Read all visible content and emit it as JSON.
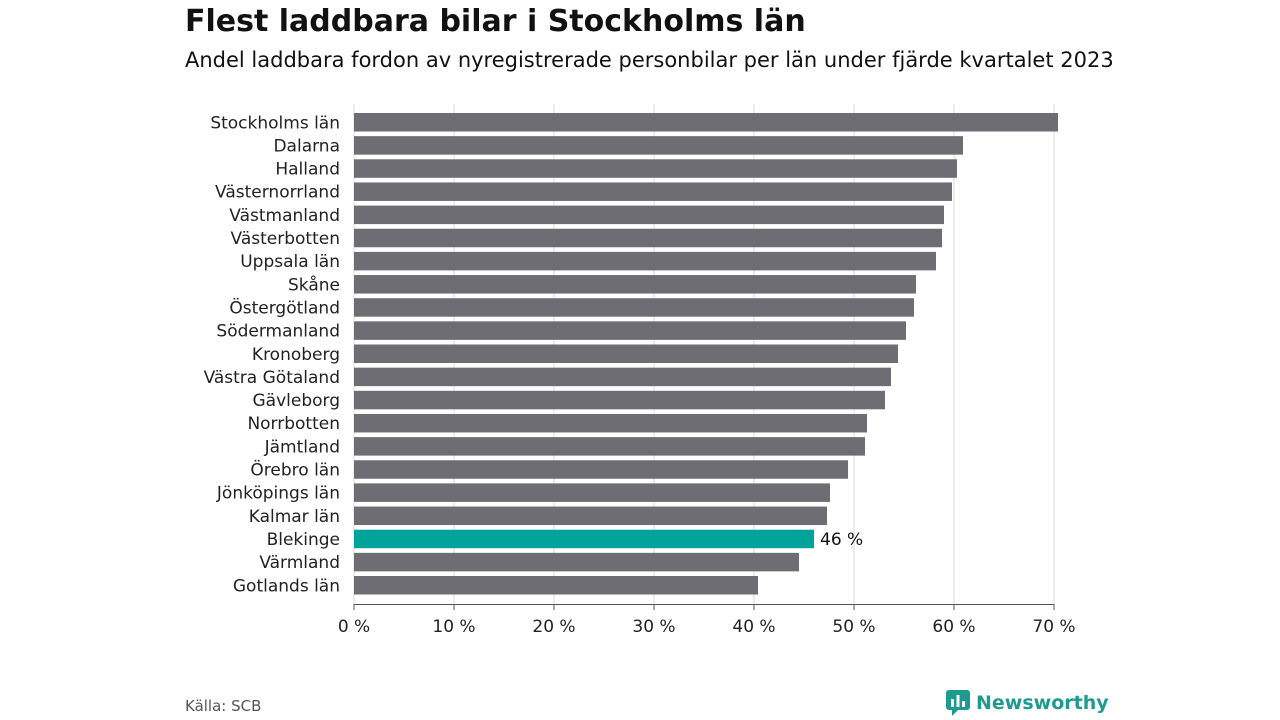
{
  "chart_data": {
    "type": "bar",
    "orientation": "horizontal",
    "title": "Flest laddbara bilar i Stockholms län",
    "subtitle": "Andel laddbara fordon av nyregistrerade personbilar per län under fjärde kvartalet 2023",
    "categories": [
      "Stockholms län",
      "Dalarna",
      "Halland",
      "Västernorrland",
      "Västmanland",
      "Västerbotten",
      "Uppsala län",
      "Skåne",
      "Östergötland",
      "Södermanland",
      "Kronoberg",
      "Västra Götaland",
      "Gävleborg",
      "Norrbotten",
      "Jämtland",
      "Örebro län",
      "Jönköpings län",
      "Kalmar län",
      "Blekinge",
      "Värmland",
      "Gotlands län"
    ],
    "values": [
      70.4,
      60.9,
      60.3,
      59.8,
      59.0,
      58.8,
      58.2,
      56.2,
      56.0,
      55.2,
      54.4,
      53.7,
      53.1,
      51.3,
      51.1,
      49.4,
      47.6,
      47.3,
      46.0,
      44.5,
      40.4
    ],
    "highlight_index": 18,
    "highlight_label": "46 %",
    "xlim": [
      0,
      70
    ],
    "xticks": [
      0,
      10,
      20,
      30,
      40,
      50,
      60,
      70
    ],
    "tick_suffix": " %",
    "grid": true,
    "colors": {
      "bar": "#6e6d74",
      "highlight": "#00a39a",
      "grid": "#d9d9d9",
      "axis": "#555555"
    }
  },
  "footer": {
    "source": "Källa: SCB",
    "brand": "Newsworthy",
    "brand_icon": "newsworthy-logo-icon",
    "brand_color": "#1f9a8f"
  }
}
